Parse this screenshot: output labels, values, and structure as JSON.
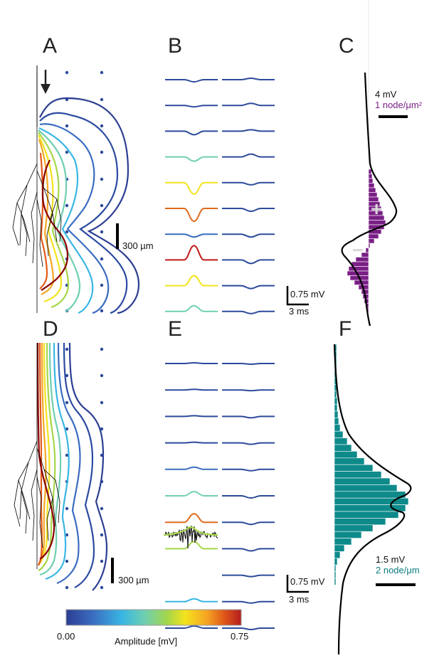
{
  "panels": {
    "A": "A",
    "B": "B",
    "C": "C",
    "D": "D",
    "E": "E",
    "F": "F"
  },
  "scale_bars": {
    "length_A": "300 µm",
    "length_D": "300 µm",
    "voltage_B": "0.75 mV",
    "time_B": "3 ms",
    "voltage_E": "0.75 mV",
    "time_E": "3 ms"
  },
  "panel_C_legend": {
    "voltage": "4 mV",
    "density": "1 node/μm²"
  },
  "panel_F_legend": {
    "voltage": "1.5 mV",
    "density": "2 node/μm"
  },
  "histogram_signs": {
    "plus": "+",
    "minus": "−"
  },
  "colorbar": {
    "min_label": "0.00",
    "max_label": "0.75",
    "title": "Amplitude [mV]",
    "stops": [
      "#2c3e92",
      "#3a6cc0",
      "#39b6e4",
      "#6fcfb0",
      "#a6d64a",
      "#f3e21c",
      "#f5a623",
      "#e05a1b",
      "#b31c1c"
    ]
  },
  "colors": {
    "purple": "#7a1f86",
    "teal": "#0e8a8a",
    "dark_red": "#8b0000"
  },
  "trace_colors_B_left": [
    "#2b4a9a",
    "#2b4a9a",
    "#2b4a9a",
    "#6fcfb0",
    "#f3e21c",
    "#e06a1b",
    "#3a6cc0",
    "#c0161a",
    "#f3e21c",
    "#6fcfb0"
  ],
  "trace_colors_E_left": [
    "#2b4a9a",
    "#2b4a9a",
    "#2b4a9a",
    "#2b4a9a",
    "#3a6cc0",
    "#6fcfb0",
    "#e06a1b",
    "#a6d64a",
    "#a6d64a",
    "#39b6e4",
    "#2b4a9a"
  ]
}
